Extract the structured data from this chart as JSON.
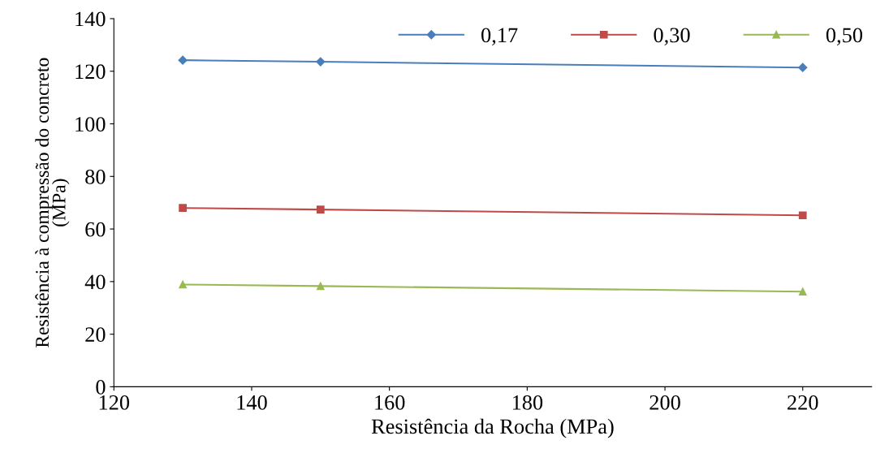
{
  "chart_data": {
    "type": "line",
    "xlabel": "Resistência da Rocha (MPa)",
    "ylabel": "Resistência à compressão do concreto\n(MPa)",
    "x": [
      130,
      150,
      220
    ],
    "series": [
      {
        "name": "0,17",
        "color": "#4a7ebb",
        "marker": "diamond",
        "values": [
          124.2,
          123.6,
          121.4
        ]
      },
      {
        "name": "0,30",
        "color": "#be4b48",
        "marker": "square",
        "values": [
          68.0,
          67.4,
          65.2
        ]
      },
      {
        "name": "0,50",
        "color": "#98b954",
        "marker": "triangle",
        "values": [
          38.9,
          38.3,
          36.2
        ]
      }
    ],
    "xlim": [
      120,
      230
    ],
    "xticks": [
      120,
      140,
      160,
      180,
      200,
      220
    ],
    "ylim": [
      0,
      140
    ],
    "yticks": [
      0,
      20,
      40,
      60,
      80,
      100,
      120,
      140
    ],
    "grid": false,
    "legend": "top right",
    "line_style": "solid"
  }
}
